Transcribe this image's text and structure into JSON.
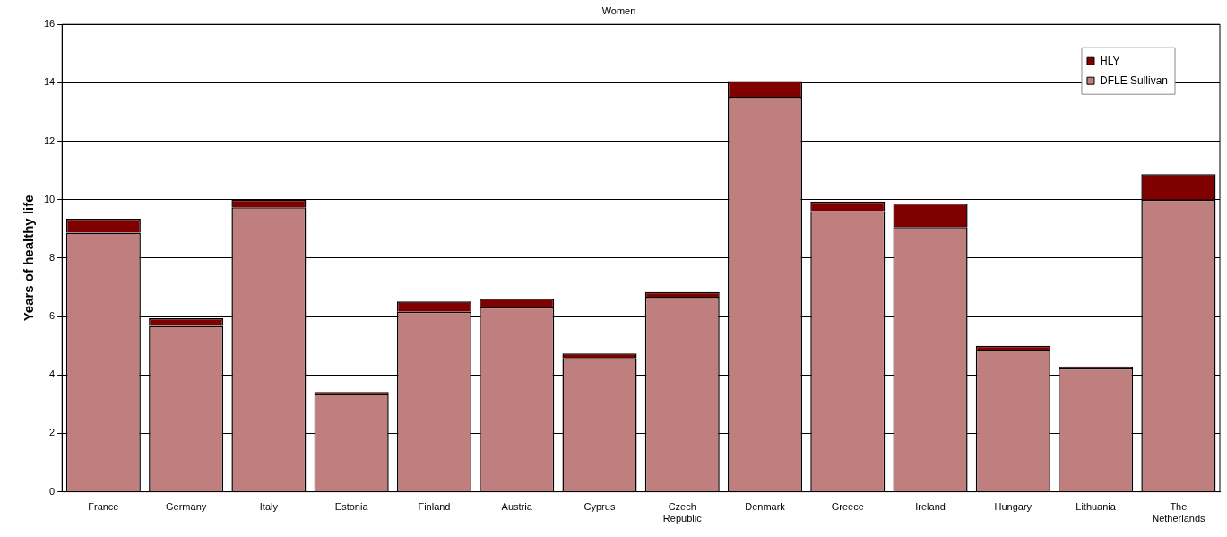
{
  "chart_data": {
    "type": "bar",
    "title": "Women",
    "ylabel": "Years of healthy life",
    "categories": [
      "France",
      "Germany",
      "Italy",
      "Estonia",
      "Finland",
      "Austria",
      "Cyprus",
      "Czech Republic",
      "Denmark",
      "Greece",
      "Ireland",
      "Hungary",
      "Lithuania",
      "The Netherlands"
    ],
    "stacked": true,
    "series": [
      {
        "name": "DFLE Sullivan",
        "color": "#bf7f7f",
        "values": [
          8.87,
          5.68,
          9.74,
          3.35,
          6.16,
          6.32,
          4.58,
          6.68,
          13.52,
          9.61,
          9.06,
          4.87,
          4.23,
          10.0
        ]
      },
      {
        "name": "HLY",
        "color": "#800000",
        "values": [
          0.48,
          0.26,
          0.26,
          0.07,
          0.36,
          0.29,
          0.16,
          0.16,
          0.54,
          0.33,
          0.81,
          0.13,
          0.06,
          0.87
        ]
      }
    ],
    "ylim": [
      0,
      16
    ],
    "yticks": [
      0,
      2,
      4,
      6,
      8,
      10,
      12,
      14,
      16
    ],
    "grid": "y",
    "legend": "top right"
  }
}
